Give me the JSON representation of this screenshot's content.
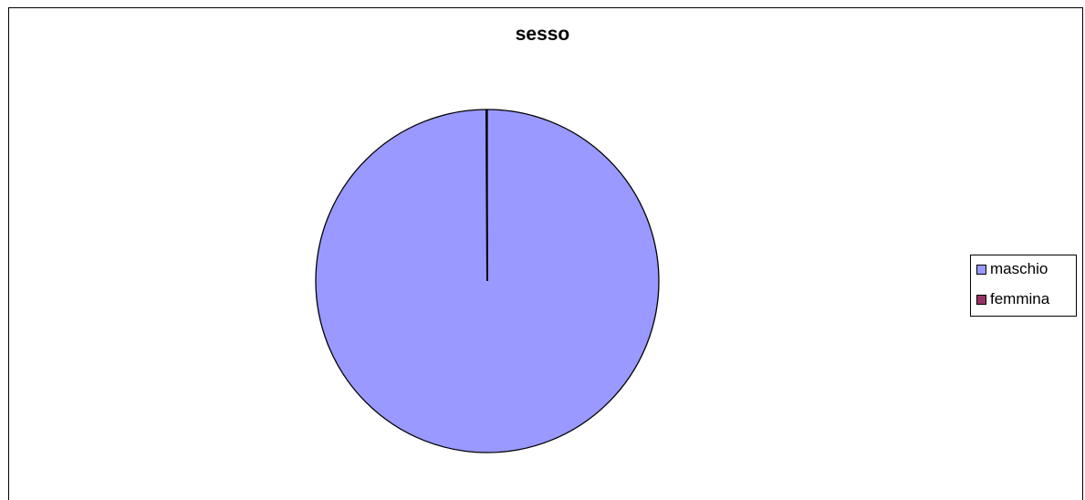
{
  "chart_data": {
    "type": "pie",
    "title": "sesso",
    "categories": [
      "maschio",
      "femmina"
    ],
    "values": [
      100,
      0
    ],
    "colors": [
      "#9999FF",
      "#993366"
    ],
    "legend_position": "right"
  }
}
